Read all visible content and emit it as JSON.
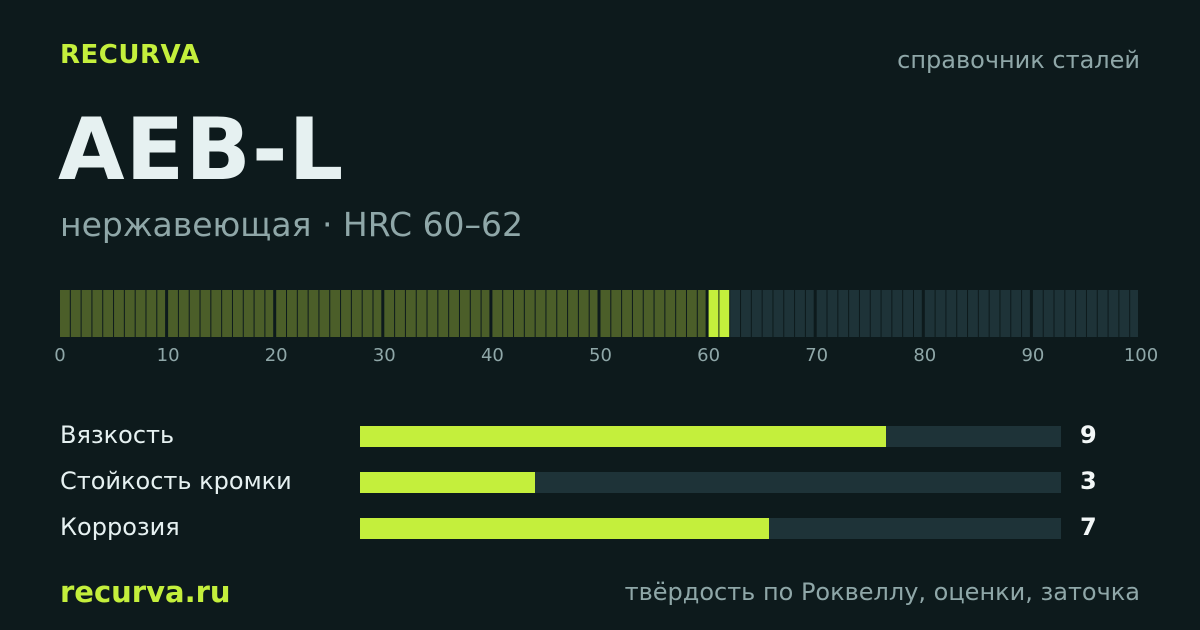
{
  "brand": "RECURVA",
  "tagline": "справочник сталей",
  "steel": {
    "name": "AEB-L",
    "subtitle": "нержавеющая · HRC 60–62"
  },
  "hardness_scale": {
    "min": 0,
    "max": 100,
    "highlight": [
      60,
      62
    ],
    "tick_labels": [
      "0",
      "10",
      "20",
      "30",
      "40",
      "50",
      "60",
      "70",
      "80",
      "90",
      "100"
    ],
    "colors": {
      "below": "#4b5e29",
      "highlight": "#c4ef3c",
      "above": "#1e3338"
    }
  },
  "metrics": [
    {
      "label": "Вязкость",
      "value": "9",
      "max": 10
    },
    {
      "label": "Стойкость кромки",
      "value": "3",
      "max": 10
    },
    {
      "label": "Коррозия",
      "value": "7",
      "max": 10
    }
  ],
  "footer": {
    "site": "recurva.ru",
    "note": "твёрдость по Роквеллу, оценки, заточка"
  },
  "colors": {
    "background": "#0d1a1c",
    "accent": "#c4ef3c",
    "muted_text": "#8fa7a8",
    "track": "#1e3338"
  }
}
